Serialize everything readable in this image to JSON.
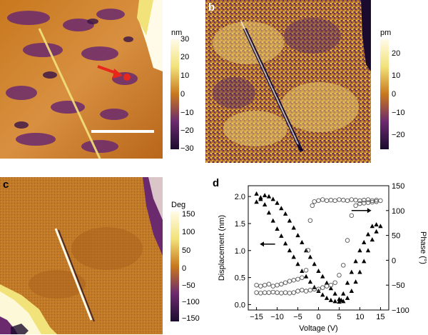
{
  "panels": {
    "a": {
      "letter": "a",
      "colorbar": {
        "unit": "nm",
        "ticks": [
          "30",
          "20",
          "10",
          "0",
          "−10",
          "−20",
          "−30"
        ]
      },
      "scale_bar": true
    },
    "b": {
      "letter": "b",
      "colorbar": {
        "unit": "pm",
        "ticks": [
          "20",
          "10",
          "0",
          "−10",
          "−20"
        ]
      }
    },
    "c": {
      "letter": "c",
      "colorbar": {
        "unit": "Deg",
        "ticks": [
          "150",
          "100",
          "50",
          "0",
          "−50",
          "−100",
          "−150"
        ]
      }
    },
    "d": {
      "letter": "d"
    }
  },
  "colors": {
    "afm_dark": "#1a0b2e",
    "afm_purple": "#6b2a6e",
    "afm_orange": "#c8781e",
    "afm_yellow": "#f2e27a",
    "afm_white": "#fffbe8",
    "marker_red": "#e8261c"
  },
  "chart_data": {
    "type": "scatter",
    "xlabel": "Voltage (V)",
    "ylabel": "Displacement (nm)",
    "y2label": "Phase (°)",
    "xlim": [
      -17,
      17
    ],
    "ylim": [
      -0.1,
      2.2
    ],
    "y2lim": [
      -100,
      150
    ],
    "xticks": [
      "−15",
      "−10",
      "−5",
      "0",
      "5",
      "10",
      "15"
    ],
    "yticks": [
      "0.0",
      "0.5",
      "1.0",
      "1.5",
      "2.0"
    ],
    "y2ticks": [
      "−100",
      "−50",
      "0",
      "50",
      "100",
      "150"
    ],
    "series": [
      {
        "marker": "filled-triangle",
        "axis": "left",
        "x": [
          -15,
          -14,
          -13,
          -12,
          -11,
          -10,
          -9,
          -8,
          -7,
          -6,
          -5,
          -4,
          -3,
          -2,
          -1,
          0,
          1,
          2,
          3,
          4,
          5,
          5.5,
          6,
          7,
          8,
          9,
          10,
          11,
          12,
          13,
          14,
          15,
          14,
          13,
          12,
          11,
          10,
          9,
          8,
          7,
          6,
          5,
          4,
          3,
          2,
          1,
          0,
          -1,
          -2,
          -3,
          -4,
          -5,
          -6,
          -7,
          -8,
          -9,
          -10,
          -11,
          -12,
          -13,
          -14,
          -15
        ],
        "y": [
          2.05,
          1.95,
          1.85,
          1.7,
          1.55,
          1.4,
          1.27,
          1.13,
          1.0,
          0.88,
          0.75,
          0.62,
          0.52,
          0.42,
          0.32,
          0.25,
          0.18,
          0.12,
          0.08,
          0.06,
          0.05,
          0.08,
          0.2,
          0.4,
          0.6,
          0.8,
          1.0,
          1.15,
          1.3,
          1.45,
          1.48,
          1.45,
          1.35,
          1.2,
          1.0,
          0.8,
          0.6,
          0.42,
          0.25,
          0.12,
          0.06,
          0.1,
          0.2,
          0.3,
          0.4,
          0.52,
          0.62,
          0.75,
          0.88,
          1.0,
          1.15,
          1.28,
          1.42,
          1.55,
          1.68,
          1.78,
          1.88,
          1.95,
          2.0,
          2.02,
          1.98,
          1.9
        ]
      },
      {
        "marker": "open-circle",
        "axis": "right",
        "x": [
          -15,
          -14,
          -13,
          -12,
          -11,
          -10,
          -9,
          -8,
          -7,
          -6,
          -5,
          -4,
          -3,
          -2.5,
          -2,
          -1.5,
          -1,
          0,
          1,
          2,
          3,
          4,
          5,
          6,
          7,
          8,
          9,
          10,
          11,
          12,
          13,
          14,
          15,
          14,
          13,
          12,
          11,
          10,
          9,
          8,
          7,
          6,
          5,
          4,
          3,
          2,
          1,
          0,
          -1,
          -2,
          -3,
          -4,
          -5,
          -6,
          -7,
          -8,
          -9,
          -10,
          -11,
          -12,
          -13,
          -14,
          -15
        ],
        "y": [
          -50,
          -52,
          -50,
          -48,
          -52,
          -50,
          -48,
          -45,
          -42,
          -40,
          -38,
          -35,
          -20,
          20,
          80,
          110,
          118,
          120,
          122,
          120,
          121,
          120,
          122,
          121,
          120,
          122,
          121,
          120,
          121,
          122,
          120,
          121,
          120,
          118,
          117,
          116,
          115,
          114,
          110,
          90,
          40,
          -10,
          -30,
          -45,
          -50,
          -52,
          -55,
          -58,
          -58,
          -60,
          -62,
          -60,
          -62,
          -65,
          -66,
          -65,
          -66,
          -65,
          -64,
          -65,
          -65,
          -66,
          -65
        ]
      }
    ]
  }
}
